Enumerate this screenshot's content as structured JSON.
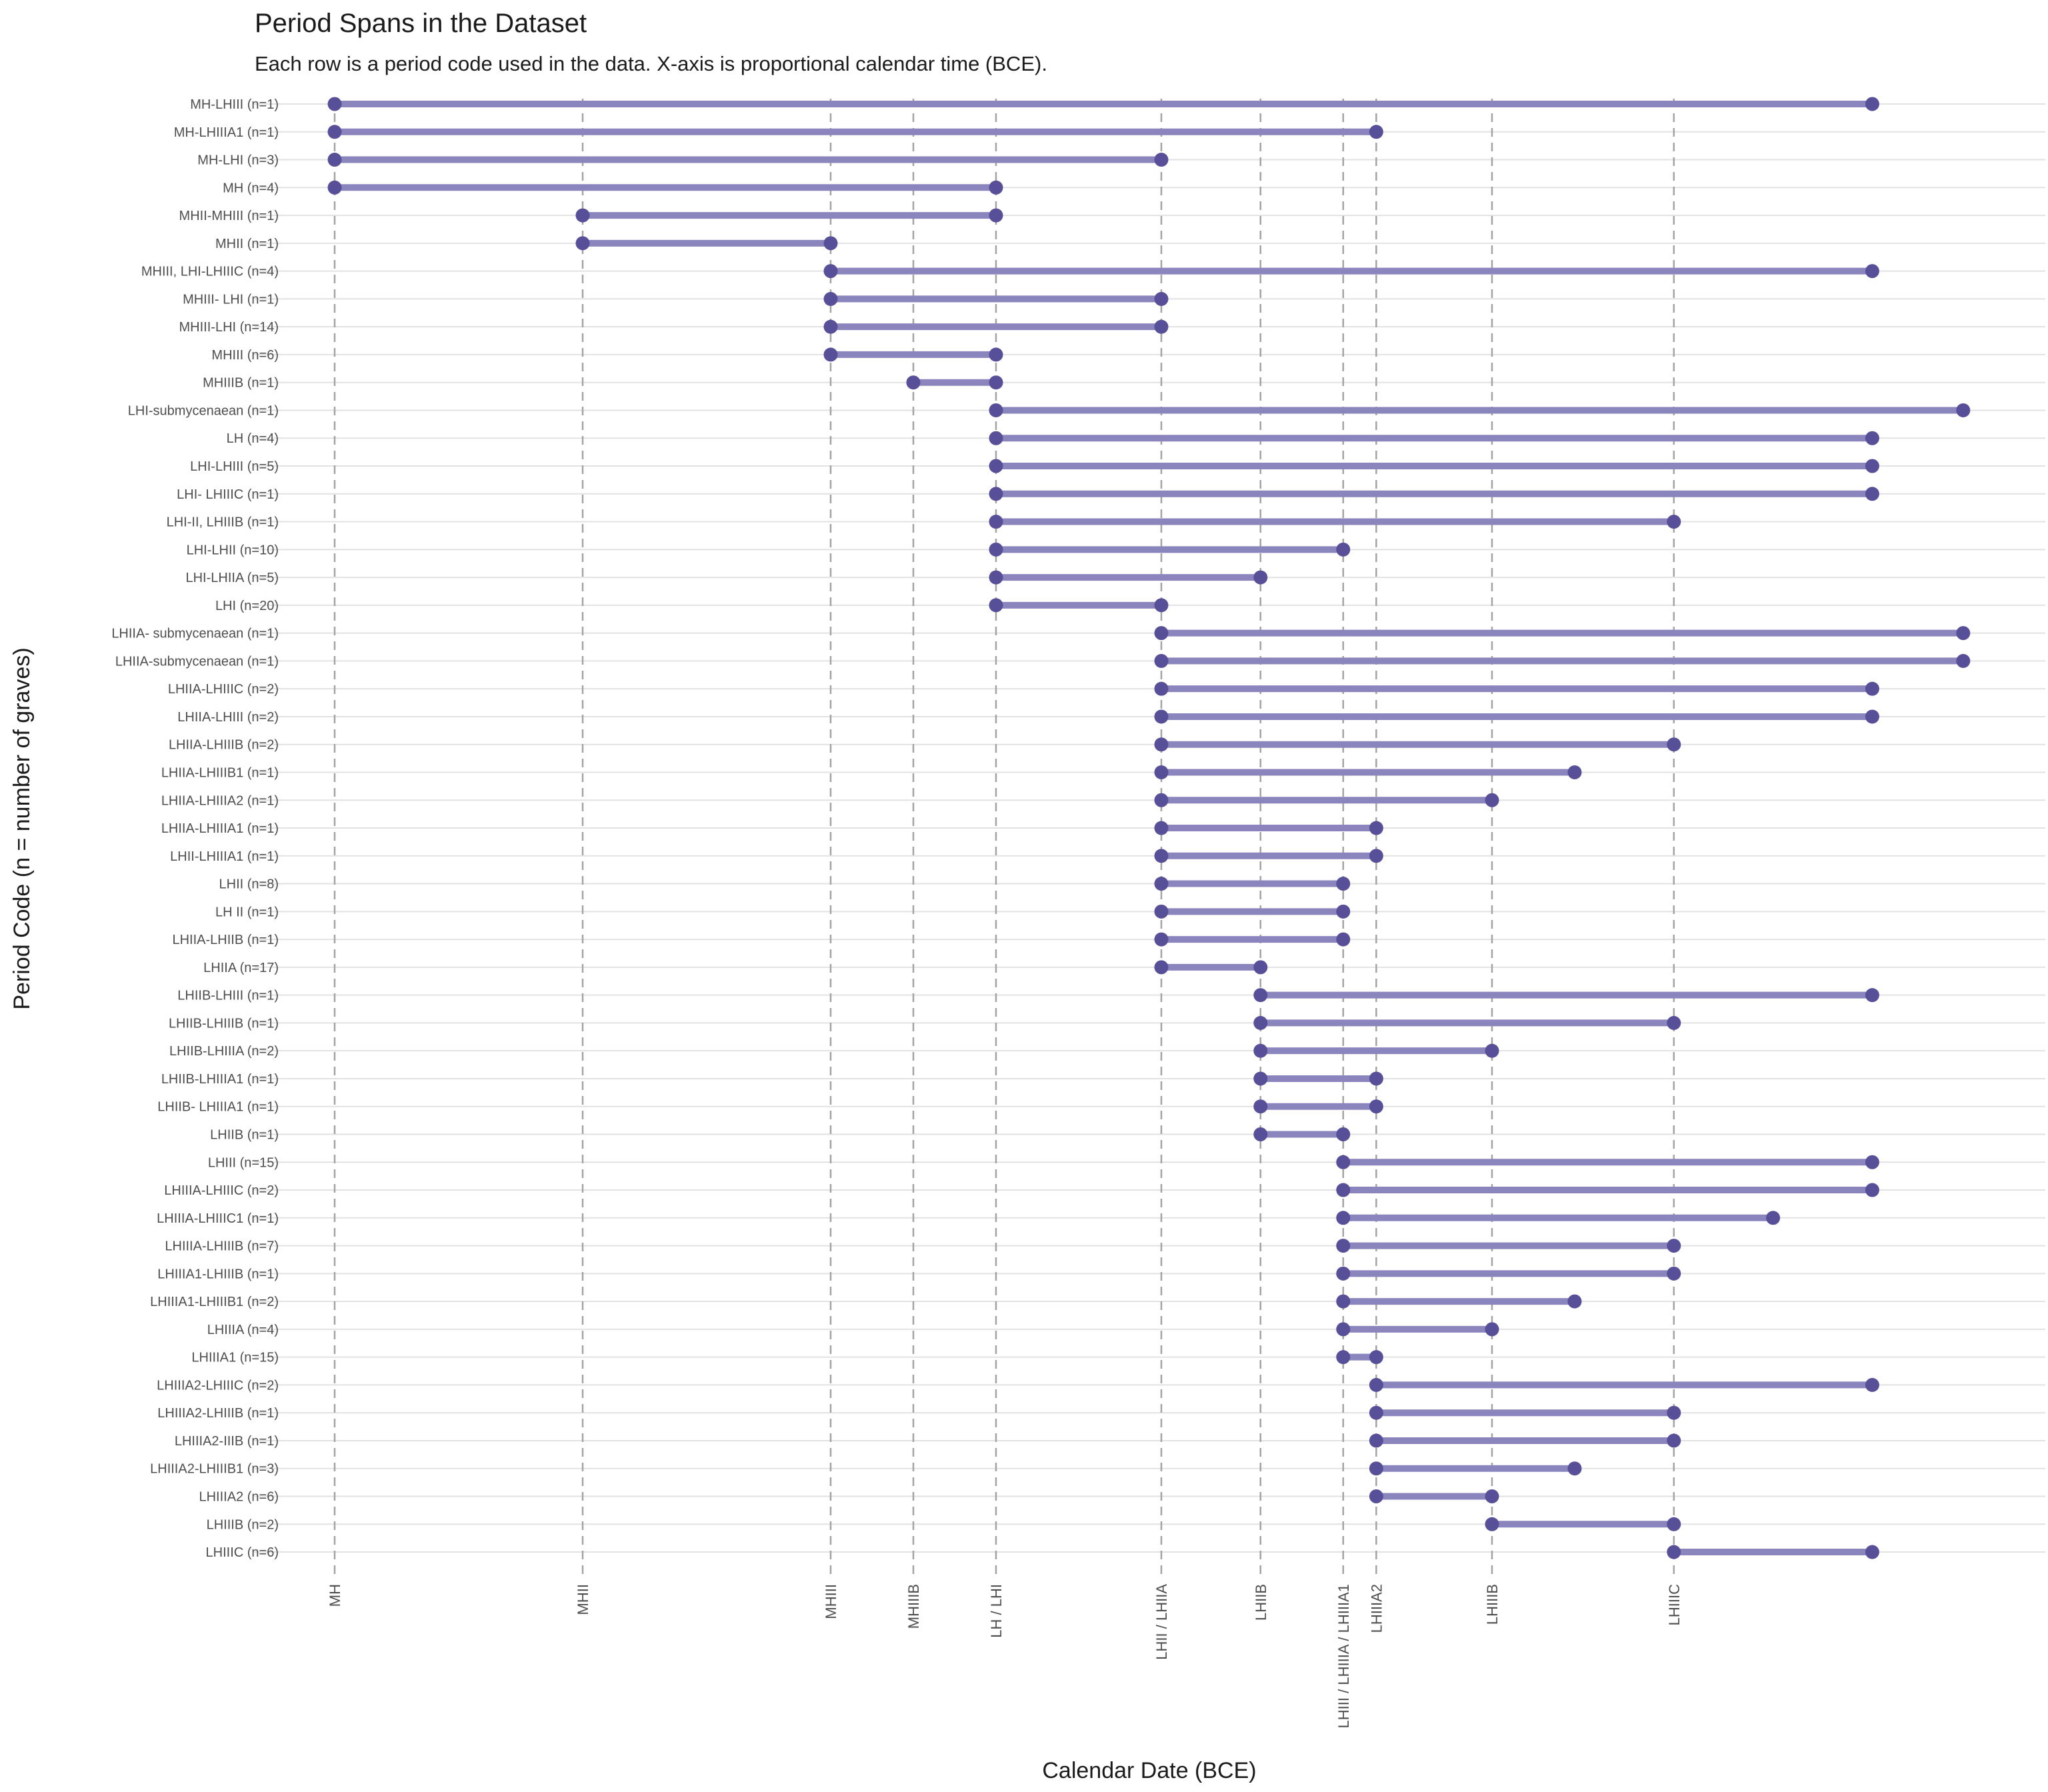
{
  "chart_data": {
    "type": "dumbbell",
    "title": "Period Spans in the Dataset",
    "subtitle": "Each row is a period code used in the data. X-axis is proportional calendar time (BCE).",
    "xlabel": "Calendar Date (BCE)",
    "ylabel": "Period Code (n = number of graves)",
    "x_unit": "relative calendar position (MH = 0, LHIIIC = 8)",
    "xlim": [
      0,
      9.92
    ],
    "x_ticks": [
      {
        "label": "MH",
        "x": 0
      },
      {
        "label": "MHII",
        "x": 1.5
      },
      {
        "label": "MHIII",
        "x": 3
      },
      {
        "label": "MHIIIB",
        "x": 3.5
      },
      {
        "label": "LH / LHI",
        "x": 4
      },
      {
        "label": "LHII / LHIIA",
        "x": 5
      },
      {
        "label": "LHIIB",
        "x": 5.6
      },
      {
        "label": "LHIII / LHIIIA / LHIIIA1",
        "x": 6.1
      },
      {
        "label": "LHIIIA2",
        "x": 6.3
      },
      {
        "label": "LHIIIB",
        "x": 7
      },
      {
        "label": "LHIIIC",
        "x": 8.1
      }
    ],
    "rows": [
      {
        "label": "MH-LHIII (n=1)",
        "start": 0,
        "end": 9.3
      },
      {
        "label": "MH-LHIIIA1 (n=1)",
        "start": 0,
        "end": 6.3
      },
      {
        "label": "MH-LHI (n=3)",
        "start": 0,
        "end": 5
      },
      {
        "label": "MH (n=4)",
        "start": 0,
        "end": 4
      },
      {
        "label": "MHII-MHIII (n=1)",
        "start": 1.5,
        "end": 4
      },
      {
        "label": "MHII (n=1)",
        "start": 1.5,
        "end": 3
      },
      {
        "label": "MHIII, LHI-LHIIIC (n=4)",
        "start": 3,
        "end": 9.3
      },
      {
        "label": "MHIII- LHI (n=1)",
        "start": 3,
        "end": 5
      },
      {
        "label": "MHIII-LHI (n=14)",
        "start": 3,
        "end": 5
      },
      {
        "label": "MHIII (n=6)",
        "start": 3,
        "end": 4
      },
      {
        "label": "MHIIIB (n=1)",
        "start": 3.5,
        "end": 4
      },
      {
        "label": "LHI-submycenaean (n=1)",
        "start": 4,
        "end": 9.85
      },
      {
        "label": "LH (n=4)",
        "start": 4,
        "end": 9.3
      },
      {
        "label": "LHI-LHIII (n=5)",
        "start": 4,
        "end": 9.3
      },
      {
        "label": "LHI- LHIIIC (n=1)",
        "start": 4,
        "end": 9.3
      },
      {
        "label": "LHI-II, LHIIIB (n=1)",
        "start": 4,
        "end": 8.1
      },
      {
        "label": "LHI-LHII (n=10)",
        "start": 4,
        "end": 6.1
      },
      {
        "label": "LHI-LHIIA (n=5)",
        "start": 4,
        "end": 5.6
      },
      {
        "label": "LHI (n=20)",
        "start": 4,
        "end": 5
      },
      {
        "label": "LHIIA- submycenaean (n=1)",
        "start": 5,
        "end": 9.85
      },
      {
        "label": "LHIIA-submycenaean (n=1)",
        "start": 5,
        "end": 9.85
      },
      {
        "label": "LHIIA-LHIIIC (n=2)",
        "start": 5,
        "end": 9.3
      },
      {
        "label": "LHIIA-LHIII (n=2)",
        "start": 5,
        "end": 9.3
      },
      {
        "label": "LHIIA-LHIIIB (n=2)",
        "start": 5,
        "end": 8.1
      },
      {
        "label": "LHIIA-LHIIIB1 (n=1)",
        "start": 5,
        "end": 7.5
      },
      {
        "label": "LHIIA-LHIIIA2 (n=1)",
        "start": 5,
        "end": 7
      },
      {
        "label": "LHIIA-LHIIIA1 (n=1)",
        "start": 5,
        "end": 6.3
      },
      {
        "label": "LHII-LHIIIA1 (n=1)",
        "start": 5,
        "end": 6.3
      },
      {
        "label": "LHII (n=8)",
        "start": 5,
        "end": 6.1
      },
      {
        "label": "LH II (n=1)",
        "start": 5,
        "end": 6.1
      },
      {
        "label": "LHIIA-LHIIB (n=1)",
        "start": 5,
        "end": 6.1
      },
      {
        "label": "LHIIA (n=17)",
        "start": 5,
        "end": 5.6
      },
      {
        "label": "LHIIB-LHIII (n=1)",
        "start": 5.6,
        "end": 9.3
      },
      {
        "label": "LHIIB-LHIIIB (n=1)",
        "start": 5.6,
        "end": 8.1
      },
      {
        "label": "LHIIB-LHIIIA (n=2)",
        "start": 5.6,
        "end": 7
      },
      {
        "label": "LHIIB-LHIIIA1 (n=1)",
        "start": 5.6,
        "end": 6.3
      },
      {
        "label": "LHIIB- LHIIIA1 (n=1)",
        "start": 5.6,
        "end": 6.3
      },
      {
        "label": "LHIIB (n=1)",
        "start": 5.6,
        "end": 6.1
      },
      {
        "label": "LHIII (n=15)",
        "start": 6.1,
        "end": 9.3
      },
      {
        "label": "LHIIIA-LHIIIC (n=2)",
        "start": 6.1,
        "end": 9.3
      },
      {
        "label": "LHIIIA-LHIIIC1 (n=1)",
        "start": 6.1,
        "end": 8.7
      },
      {
        "label": "LHIIIA-LHIIIB (n=7)",
        "start": 6.1,
        "end": 8.1
      },
      {
        "label": "LHIIIA1-LHIIIB (n=1)",
        "start": 6.1,
        "end": 8.1
      },
      {
        "label": "LHIIIA1-LHIIIB1 (n=2)",
        "start": 6.1,
        "end": 7.5
      },
      {
        "label": "LHIIIA (n=4)",
        "start": 6.1,
        "end": 7
      },
      {
        "label": "LHIIIA1 (n=15)",
        "start": 6.1,
        "end": 6.3
      },
      {
        "label": "LHIIIA2-LHIIIC (n=2)",
        "start": 6.3,
        "end": 9.3
      },
      {
        "label": "LHIIIA2-LHIIIB (n=1)",
        "start": 6.3,
        "end": 8.1
      },
      {
        "label": "LHIIIA2-IIIB (n=1)",
        "start": 6.3,
        "end": 8.1
      },
      {
        "label": "LHIIIA2-LHIIIB1 (n=3)",
        "start": 6.3,
        "end": 7.5
      },
      {
        "label": "LHIIIA2 (n=6)",
        "start": 6.3,
        "end": 7
      },
      {
        "label": "LHIIIB (n=2)",
        "start": 7,
        "end": 8.1
      },
      {
        "label": "LHIIIC (n=6)",
        "start": 8.1,
        "end": 9.3
      }
    ],
    "colors": {
      "segment": "#8a85bd",
      "point": "#574f98",
      "gridline": "#e2e2e2",
      "tickline": "#a3a3a3"
    }
  }
}
